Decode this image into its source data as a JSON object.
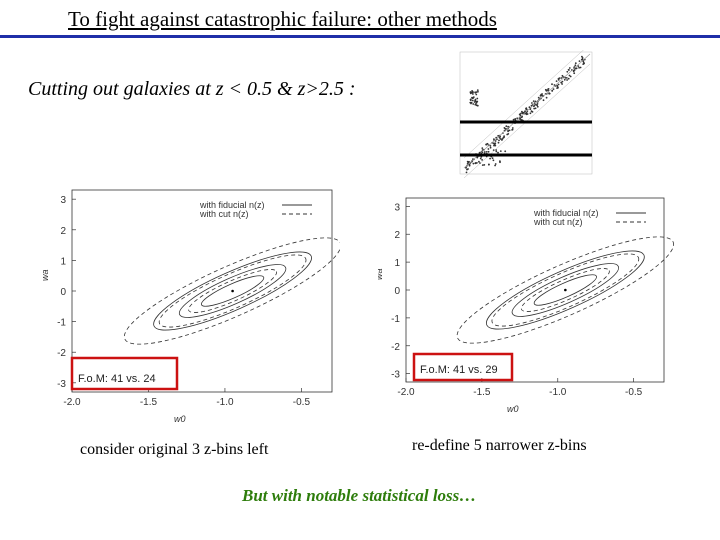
{
  "slide": {
    "title": "To fight against catastrophic failure:  other methods",
    "subtitle": "Cutting out galaxies at z < 0.5 & z>2.5 :",
    "left_caption": "consider original 3 z-bins left",
    "right_caption": "re-define 5 narrower z-bins",
    "note": "But with notable statistical loss…",
    "accent_color": "#1f2fa8",
    "highlight_color": "#cc1111",
    "note_color": "#2e7d0c"
  },
  "chart_data": [
    {
      "type": "scatter",
      "description": "photo-z vs spec-z scatter with horizontal cut lines",
      "cuts": [
        0.5,
        2.5
      ]
    },
    {
      "type": "line",
      "xlabel": "w0",
      "ylabel": "wa",
      "xlim": [
        -2.0,
        -0.3
      ],
      "ylim": [
        -3.3,
        3.3
      ],
      "xticks": [
        "-2.0",
        "-1.5",
        "-1.0",
        "-0.5"
      ],
      "yticks": [
        "3",
        "2",
        "1",
        "0",
        "-1",
        "-2",
        "-3"
      ],
      "legend": [
        {
          "label": "with fiducial n(z)",
          "style": "solid"
        },
        {
          "label": "with cut n(z)",
          "style": "dashed"
        }
      ],
      "fom_label": "F.o.M: 41 vs. 24",
      "fiducial_point": [
        -0.95,
        0.0
      ]
    },
    {
      "type": "line",
      "xlabel": "w0",
      "ylabel": "wa",
      "xlim": [
        -2.0,
        -0.3
      ],
      "ylim": [
        -3.3,
        3.3
      ],
      "xticks": [
        "-2.0",
        "-1.5",
        "-1.0",
        "-0.5"
      ],
      "yticks": [
        "3",
        "2",
        "1",
        "0",
        "-1",
        "-2",
        "-3"
      ],
      "legend": [
        {
          "label": "with fiducial n(z)",
          "style": "solid"
        },
        {
          "label": "with cut n(z)",
          "style": "dashed"
        }
      ],
      "fom_label": "F.o.M: 41 vs. 29",
      "fiducial_point": [
        -0.95,
        0.0
      ]
    }
  ]
}
